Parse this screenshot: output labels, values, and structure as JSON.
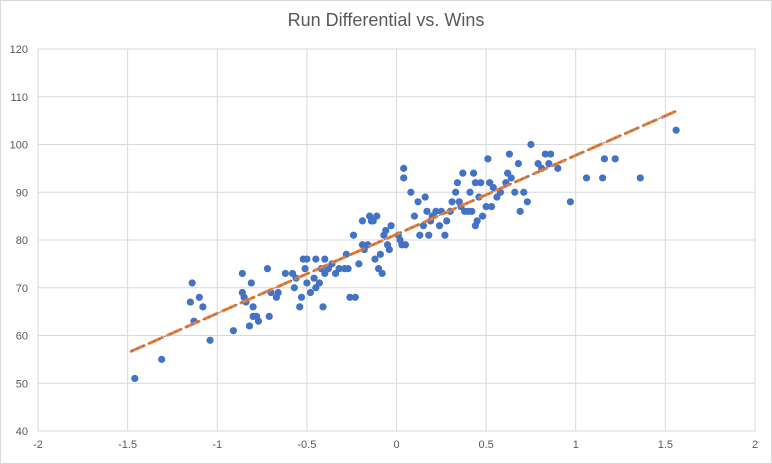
{
  "chart_data": {
    "type": "scatter",
    "title": "Run Differential vs. Wins",
    "xlabel": "",
    "ylabel": "",
    "xlim": [
      -2,
      2
    ],
    "ylim": [
      40,
      120
    ],
    "x_ticks": [
      "-2",
      "-1.5",
      "-1",
      "-0.5",
      "0",
      "0.5",
      "1",
      "1.5",
      "2"
    ],
    "y_ticks": [
      "40",
      "50",
      "60",
      "70",
      "80",
      "90",
      "100",
      "110",
      "120"
    ],
    "grid": "vertical and horizontal major gridlines",
    "legend": "none",
    "marker_color": "#4472c4",
    "trendline": {
      "type": "linear",
      "color": "#ed7d31",
      "x_start": -1.48,
      "y_start": 56.7,
      "x_end": 1.56,
      "y_end": 107.0
    },
    "series": [
      {
        "points": [
          [
            -1.46,
            51
          ],
          [
            -1.31,
            55
          ],
          [
            -1.15,
            67
          ],
          [
            -1.14,
            71
          ],
          [
            -1.13,
            63
          ],
          [
            -1.1,
            68
          ],
          [
            -1.08,
            66
          ],
          [
            -1.04,
            59
          ],
          [
            -0.91,
            61
          ],
          [
            -0.86,
            73
          ],
          [
            -0.86,
            69
          ],
          [
            -0.85,
            68
          ],
          [
            -0.84,
            67
          ],
          [
            -0.82,
            62
          ],
          [
            -0.81,
            71
          ],
          [
            -0.8,
            66
          ],
          [
            -0.8,
            64
          ],
          [
            -0.78,
            64
          ],
          [
            -0.77,
            63
          ],
          [
            -0.72,
            74
          ],
          [
            -0.71,
            64
          ],
          [
            -0.7,
            69
          ],
          [
            -0.67,
            68
          ],
          [
            -0.66,
            69
          ],
          [
            -0.62,
            73
          ],
          [
            -0.58,
            73
          ],
          [
            -0.57,
            70
          ],
          [
            -0.56,
            72
          ],
          [
            -0.54,
            66
          ],
          [
            -0.53,
            68
          ],
          [
            -0.52,
            76
          ],
          [
            -0.51,
            74
          ],
          [
            -0.5,
            71
          ],
          [
            -0.5,
            76
          ],
          [
            -0.48,
            69
          ],
          [
            -0.46,
            72
          ],
          [
            -0.45,
            70
          ],
          [
            -0.45,
            76
          ],
          [
            -0.43,
            71
          ],
          [
            -0.42,
            74
          ],
          [
            -0.41,
            66
          ],
          [
            -0.4,
            73
          ],
          [
            -0.4,
            76
          ],
          [
            -0.38,
            74
          ],
          [
            -0.36,
            75
          ],
          [
            -0.34,
            73
          ],
          [
            -0.32,
            74
          ],
          [
            -0.29,
            74
          ],
          [
            -0.28,
            77
          ],
          [
            -0.27,
            74
          ],
          [
            -0.26,
            68
          ],
          [
            -0.24,
            81
          ],
          [
            -0.23,
            68
          ],
          [
            -0.21,
            75
          ],
          [
            -0.19,
            79
          ],
          [
            -0.19,
            84
          ],
          [
            -0.18,
            78
          ],
          [
            -0.16,
            79
          ],
          [
            -0.15,
            85
          ],
          [
            -0.14,
            84
          ],
          [
            -0.13,
            84
          ],
          [
            -0.12,
            76
          ],
          [
            -0.11,
            85
          ],
          [
            -0.1,
            74
          ],
          [
            -0.09,
            77
          ],
          [
            -0.08,
            73
          ],
          [
            -0.07,
            81
          ],
          [
            -0.06,
            82
          ],
          [
            -0.05,
            79
          ],
          [
            -0.04,
            78
          ],
          [
            -0.03,
            83
          ],
          [
            0.01,
            81
          ],
          [
            0.02,
            80
          ],
          [
            0.03,
            79
          ],
          [
            0.04,
            95
          ],
          [
            0.04,
            93
          ],
          [
            0.05,
            79
          ],
          [
            0.08,
            90
          ],
          [
            0.1,
            85
          ],
          [
            0.12,
            88
          ],
          [
            0.13,
            81
          ],
          [
            0.15,
            83
          ],
          [
            0.16,
            89
          ],
          [
            0.17,
            86
          ],
          [
            0.18,
            81
          ],
          [
            0.19,
            84
          ],
          [
            0.2,
            85
          ],
          [
            0.22,
            86
          ],
          [
            0.24,
            83
          ],
          [
            0.25,
            86
          ],
          [
            0.27,
            81
          ],
          [
            0.28,
            84
          ],
          [
            0.3,
            86
          ],
          [
            0.31,
            88
          ],
          [
            0.33,
            90
          ],
          [
            0.34,
            92
          ],
          [
            0.35,
            88
          ],
          [
            0.36,
            87
          ],
          [
            0.37,
            94
          ],
          [
            0.38,
            86
          ],
          [
            0.4,
            86
          ],
          [
            0.41,
            90
          ],
          [
            0.42,
            86
          ],
          [
            0.43,
            94
          ],
          [
            0.44,
            92
          ],
          [
            0.44,
            83
          ],
          [
            0.45,
            84
          ],
          [
            0.46,
            89
          ],
          [
            0.47,
            92
          ],
          [
            0.48,
            85
          ],
          [
            0.5,
            87
          ],
          [
            0.51,
            97
          ],
          [
            0.52,
            92
          ],
          [
            0.53,
            87
          ],
          [
            0.54,
            91
          ],
          [
            0.56,
            89
          ],
          [
            0.58,
            90
          ],
          [
            0.61,
            92
          ],
          [
            0.62,
            94
          ],
          [
            0.63,
            98
          ],
          [
            0.64,
            93
          ],
          [
            0.66,
            90
          ],
          [
            0.68,
            96
          ],
          [
            0.69,
            86
          ],
          [
            0.71,
            90
          ],
          [
            0.73,
            88
          ],
          [
            0.75,
            100
          ],
          [
            0.79,
            96
          ],
          [
            0.81,
            95
          ],
          [
            0.83,
            98
          ],
          [
            0.85,
            96
          ],
          [
            0.86,
            98
          ],
          [
            0.9,
            95
          ],
          [
            0.97,
            88
          ],
          [
            1.06,
            93
          ],
          [
            1.15,
            93
          ],
          [
            1.16,
            97
          ],
          [
            1.22,
            97
          ],
          [
            1.36,
            93
          ],
          [
            1.56,
            103
          ]
        ]
      }
    ]
  }
}
